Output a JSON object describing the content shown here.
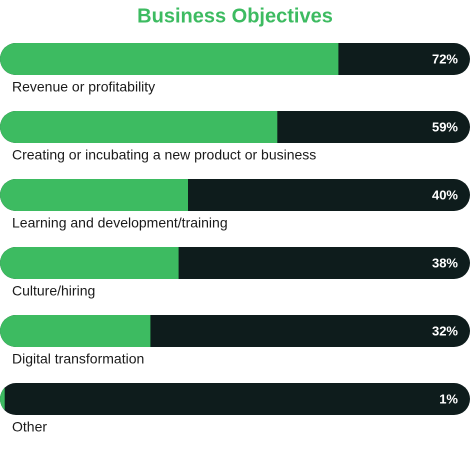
{
  "chart_data": {
    "type": "bar",
    "orientation": "horizontal",
    "title": "Business Objectives",
    "categories": [
      "Revenue or profitability",
      "Creating or incubating a new product or business",
      "Learning and development/training",
      "Culture/hiring",
      "Digital transformation",
      "Other"
    ],
    "values": [
      72,
      59,
      40,
      38,
      32,
      1
    ],
    "value_labels": [
      "72%",
      "59%",
      "40%",
      "38%",
      "32%",
      "1%"
    ],
    "xlim": [
      0,
      100
    ],
    "color": "#3dbb61",
    "track_color": "#0e1c1c"
  }
}
